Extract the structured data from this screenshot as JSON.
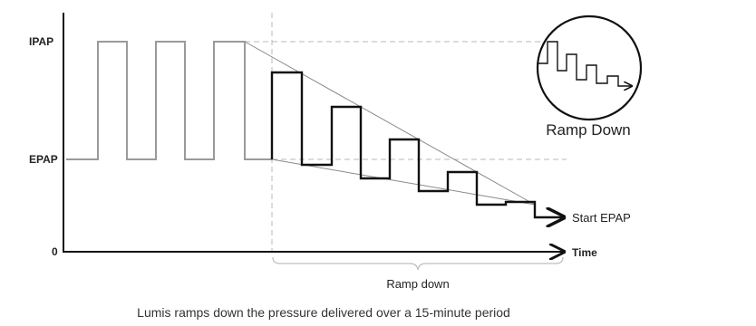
{
  "axis": {
    "ipap_label": "IPAP",
    "epap_label": "EPAP",
    "zero_label": "0",
    "time_label": "Time"
  },
  "annotations": {
    "start_epap_label": "Start EPAP",
    "ramp_down_label": "Ramp down"
  },
  "inset": {
    "label": "Ramp Down",
    "icon": "ramp-down-step-icon"
  },
  "caption": "Lumis ramps down the pressure delivered over a 15-minute period",
  "colors": {
    "waveform_before": "#9a9a9a",
    "waveform_ramp": "#111111",
    "guide_lines": "#b8b8b8",
    "axis": "#111111"
  }
}
